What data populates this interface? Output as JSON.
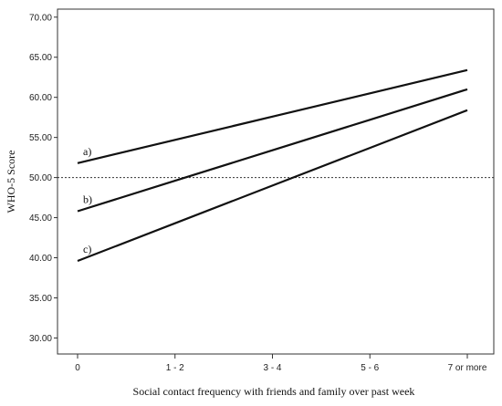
{
  "chart_data": {
    "type": "line",
    "title": "",
    "xlabel": "Social contact frequency with friends and family over past week",
    "ylabel": "WHO-5 Score",
    "categories": [
      "0",
      "1 - 2",
      "3 - 4",
      "5 - 6",
      "7 or more"
    ],
    "yticks": [
      "30.00",
      "35.00",
      "40.00",
      "45.00",
      "50.00",
      "55.00",
      "60.00",
      "65.00",
      "70.00"
    ],
    "ylim": [
      28,
      71
    ],
    "grid": false,
    "legend": "none",
    "reference_line": {
      "y": 50,
      "style": "dotted"
    },
    "series": [
      {
        "label": "a)",
        "values": [
          51.8,
          54.7,
          57.6,
          60.5,
          63.4
        ]
      },
      {
        "label": "b)",
        "values": [
          45.8,
          49.6,
          53.4,
          57.2,
          61.0
        ]
      },
      {
        "label": "c)",
        "values": [
          39.6,
          44.3,
          49.0,
          53.7,
          58.4
        ]
      }
    ]
  }
}
